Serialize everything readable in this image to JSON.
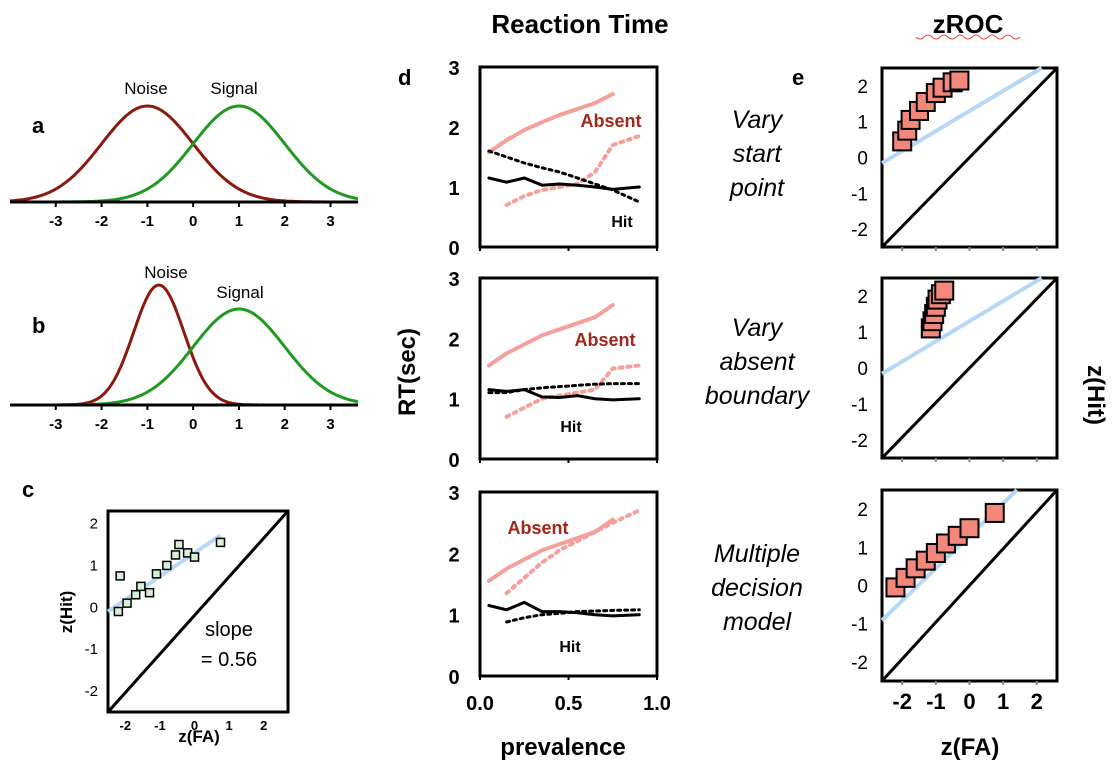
{
  "header": {
    "reaction_time": "Reaction Time",
    "zroc": "zROC"
  },
  "colors": {
    "noise": "#8b1a0e",
    "signal": "#1f9a1f",
    "absent": "#f5a09a",
    "absent_label": "#a3261a",
    "hit": "#000000",
    "fit": "#b6d8f6",
    "marker_fill": "#f2877c",
    "marker_fill_c": "#d6f0d6"
  },
  "panel_labels": {
    "a": "a",
    "b": "b",
    "c": "c",
    "d": "d",
    "e": "e"
  },
  "row_labels": [
    [
      "Vary",
      "start",
      "point"
    ],
    [
      "Vary",
      "absent",
      "boundary"
    ],
    [
      "Multiple",
      "decision",
      "model"
    ]
  ],
  "axis_titles": {
    "rt_ylabel": "RT(sec)",
    "rt_xlabel": "prevalence",
    "zroc_xlabel": "z(FA)",
    "zroc_ylabel": "z(Hit)",
    "c_xlabel": "z(FA)",
    "c_ylabel": "z(Hit)"
  },
  "chart_data": [
    {
      "id": "a",
      "type": "line",
      "series": [
        {
          "name": "Noise",
          "mean": -1,
          "sd": 1,
          "peak": 1.0
        },
        {
          "name": "Signal",
          "mean": 1,
          "sd": 1,
          "peak": 1.0
        }
      ],
      "x_ticks": [
        "-3",
        "-2",
        "-1",
        "0",
        "1",
        "2",
        "3"
      ],
      "xlim": [
        -4,
        3.6
      ]
    },
    {
      "id": "b",
      "type": "line",
      "series": [
        {
          "name": "Noise",
          "mean": -0.75,
          "sd": 0.55,
          "peak": 1.25
        },
        {
          "name": "Signal",
          "mean": 1,
          "sd": 1,
          "peak": 1.0
        }
      ],
      "x_ticks": [
        "-3",
        "-2",
        "-1",
        "0",
        "1",
        "2",
        "3"
      ],
      "xlim": [
        -4,
        3.6
      ]
    },
    {
      "id": "c",
      "type": "scatter",
      "xlabel": "z(FA)",
      "ylabel": "z(Hit)",
      "xlim": [
        -2.5,
        2.7
      ],
      "ylim": [
        -2.5,
        2.3
      ],
      "x_ticks": [
        "-2",
        "-1",
        "0",
        "1",
        "2"
      ],
      "y_ticks": [
        "2",
        "1",
        "0",
        "-1",
        "-2"
      ],
      "points": [
        [
          -2.2,
          -0.1
        ],
        [
          -2.15,
          0.75
        ],
        [
          -1.95,
          0.1
        ],
        [
          -1.7,
          0.3
        ],
        [
          -1.55,
          0.5
        ],
        [
          -1.3,
          0.35
        ],
        [
          -1.1,
          0.8
        ],
        [
          -0.8,
          1.0
        ],
        [
          -0.55,
          1.25
        ],
        [
          -0.45,
          1.5
        ],
        [
          -0.2,
          1.3
        ],
        [
          0.0,
          1.2
        ],
        [
          0.75,
          1.55
        ]
      ],
      "fit_slope": 0.56,
      "fit_intercept": 1.3,
      "annotation": [
        "slope",
        "= 0.56"
      ]
    },
    {
      "id": "d1",
      "type": "line",
      "xlim": [
        0,
        1
      ],
      "ylim": [
        0,
        3
      ],
      "y_ticks": [
        "3",
        "2",
        "1",
        "0"
      ],
      "x": [
        0.05,
        0.15,
        0.25,
        0.35,
        0.45,
        0.55,
        0.65,
        0.75,
        0.9
      ],
      "series": [
        {
          "name": "Absent",
          "values": [
            1.58,
            1.78,
            1.95,
            2.08,
            2.2,
            2.3,
            2.4,
            2.55,
            null
          ],
          "style": "solid"
        },
        {
          "name": "",
          "values": [
            null,
            0.7,
            0.85,
            0.95,
            1.0,
            1.05,
            1.25,
            1.7,
            1.85
          ],
          "style": "dotted-absent"
        },
        {
          "name": "",
          "values": [
            1.6,
            1.5,
            1.4,
            1.32,
            1.25,
            1.15,
            1.05,
            0.95,
            0.75
          ],
          "style": "dotted-hit"
        },
        {
          "name": "Hit",
          "values": [
            1.15,
            1.08,
            1.15,
            1.03,
            1.05,
            1.03,
            1.0,
            0.96,
            1.0
          ],
          "style": "solid-hit"
        }
      ],
      "labels": {
        "absent": "Absent",
        "hit": "Hit"
      }
    },
    {
      "id": "d2",
      "type": "line",
      "xlim": [
        0,
        1
      ],
      "ylim": [
        0,
        3
      ],
      "y_ticks": [
        "3",
        "2",
        "1",
        "0"
      ],
      "x": [
        0.05,
        0.15,
        0.25,
        0.35,
        0.45,
        0.55,
        0.65,
        0.75,
        0.9
      ],
      "series": [
        {
          "name": "Absent",
          "values": [
            1.55,
            1.75,
            1.9,
            2.05,
            2.15,
            2.25,
            2.35,
            2.55,
            null
          ],
          "style": "solid"
        },
        {
          "name": "",
          "values": [
            null,
            0.7,
            0.85,
            1.0,
            1.05,
            1.1,
            1.15,
            1.5,
            1.55
          ],
          "style": "dotted-absent"
        },
        {
          "name": "",
          "values": [
            1.1,
            1.1,
            1.15,
            1.18,
            1.2,
            1.22,
            1.24,
            1.25,
            1.25
          ],
          "style": "dotted-hit"
        },
        {
          "name": "Hit",
          "values": [
            1.15,
            1.12,
            1.15,
            1.03,
            1.02,
            1.05,
            1.0,
            0.98,
            1.0
          ],
          "style": "solid-hit"
        }
      ],
      "labels": {
        "absent": "Absent",
        "hit": "Hit"
      }
    },
    {
      "id": "d3",
      "type": "line",
      "xlim": [
        0,
        1
      ],
      "ylim": [
        0,
        3
      ],
      "y_ticks": [
        "3",
        "2",
        "1",
        "0"
      ],
      "x_ticks": [
        "0.0",
        "0.5",
        "1.0"
      ],
      "x": [
        0.05,
        0.15,
        0.25,
        0.35,
        0.45,
        0.55,
        0.65,
        0.75,
        0.9
      ],
      "series": [
        {
          "name": "Absent",
          "values": [
            1.55,
            1.75,
            1.9,
            2.05,
            2.15,
            2.25,
            2.35,
            2.55,
            null
          ],
          "style": "solid"
        },
        {
          "name": "",
          "values": [
            null,
            1.35,
            1.6,
            1.85,
            2.05,
            2.2,
            2.35,
            2.5,
            2.7
          ],
          "style": "dotted-absent"
        },
        {
          "name": "",
          "values": [
            null,
            0.88,
            0.95,
            1.0,
            1.02,
            1.05,
            1.06,
            1.07,
            1.08
          ],
          "style": "dotted-hit"
        },
        {
          "name": "Hit",
          "values": [
            1.15,
            1.08,
            1.2,
            1.05,
            1.05,
            1.03,
            1.0,
            0.98,
            1.0
          ],
          "style": "solid-hit"
        }
      ],
      "labels": {
        "absent": "Absent",
        "hit": "Hit"
      }
    },
    {
      "id": "e1",
      "type": "scatter",
      "xlim": [
        -2.6,
        2.6
      ],
      "ylim": [
        -2.5,
        2.5
      ],
      "y_ticks": [
        "2",
        "1",
        "0",
        "-1",
        "-2"
      ],
      "points": [
        [
          -2.0,
          0.45
        ],
        [
          -1.85,
          0.75
        ],
        [
          -1.75,
          1.05
        ],
        [
          -1.5,
          1.3
        ],
        [
          -1.3,
          1.55
        ],
        [
          -1.0,
          1.8
        ],
        [
          -0.8,
          1.95
        ],
        [
          -0.5,
          2.1
        ],
        [
          -0.3,
          2.15
        ]
      ],
      "fit_slope": 0.56,
      "fit_intercept": 1.3
    },
    {
      "id": "e2",
      "type": "scatter",
      "xlim": [
        -2.6,
        2.6
      ],
      "ylim": [
        -2.5,
        2.5
      ],
      "y_ticks": [
        "2",
        "1",
        "0",
        "-1",
        "-2"
      ],
      "points": [
        [
          -1.15,
          1.1
        ],
        [
          -1.1,
          1.3
        ],
        [
          -1.05,
          1.5
        ],
        [
          -1.0,
          1.7
        ],
        [
          -0.95,
          1.9
        ],
        [
          -0.85,
          2.05
        ],
        [
          -0.75,
          2.15
        ]
      ],
      "fit_slope": 0.56,
      "fit_intercept": 1.3
    },
    {
      "id": "e3",
      "type": "scatter",
      "xlim": [
        -2.6,
        2.6
      ],
      "ylim": [
        -2.5,
        2.5
      ],
      "y_ticks": [
        "2",
        "1",
        "0",
        "-1",
        "-2"
      ],
      "x_ticks": [
        "-2",
        "-1",
        "0",
        "1",
        "2"
      ],
      "points": [
        [
          -2.2,
          -0.05
        ],
        [
          -1.9,
          0.2
        ],
        [
          -1.6,
          0.45
        ],
        [
          -1.3,
          0.65
        ],
        [
          -1.0,
          0.85
        ],
        [
          -0.7,
          1.1
        ],
        [
          -0.35,
          1.3
        ],
        [
          0.0,
          1.5
        ],
        [
          0.75,
          1.9
        ]
      ],
      "fit_slope": 0.85,
      "fit_intercept": 1.3
    }
  ]
}
